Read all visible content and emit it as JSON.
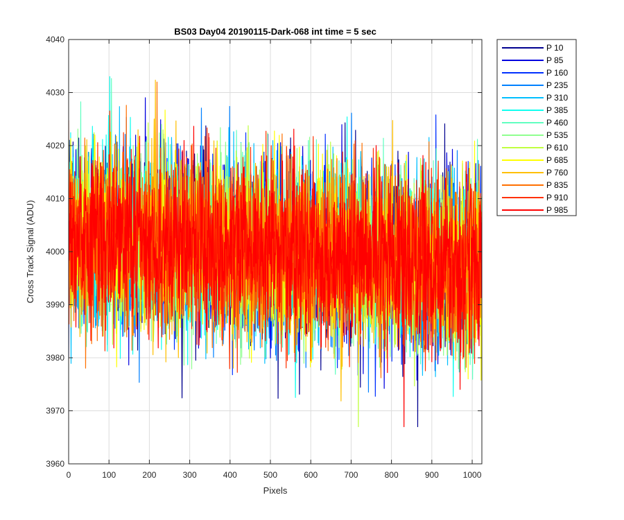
{
  "chart_data": {
    "type": "line",
    "title": "BS03 Day04 20190115-Dark-068 int time = 5 sec",
    "xlabel": "Pixels",
    "ylabel": "Cross Track Signal (ADU)",
    "xlim": [
      0,
      1024
    ],
    "ylim": [
      3960,
      4040
    ],
    "xticks": [
      0,
      100,
      200,
      300,
      400,
      500,
      600,
      700,
      800,
      900,
      1000
    ],
    "yticks": [
      3960,
      3970,
      3980,
      3990,
      4000,
      4010,
      4020,
      4030,
      4040
    ],
    "grid": true,
    "legend_position": "outside-top-right",
    "noise_model": {
      "points": 1024,
      "typical_std_adu": 8,
      "min_adu": 3967,
      "max_adu": 4040,
      "mean_trend_adu": [
        [
          0,
          4003
        ],
        [
          1024,
          3997
        ]
      ]
    },
    "series": [
      {
        "name": "P 10",
        "color": "#00008F"
      },
      {
        "name": "P 85",
        "color": "#0000DF"
      },
      {
        "name": "P 160",
        "color": "#0030FF"
      },
      {
        "name": "P 235",
        "color": "#0080FF"
      },
      {
        "name": "P 310",
        "color": "#00BFFF"
      },
      {
        "name": "P 385",
        "color": "#10FFEF"
      },
      {
        "name": "P 460",
        "color": "#60FFC0"
      },
      {
        "name": "P 535",
        "color": "#8FFF8F"
      },
      {
        "name": "P 610",
        "color": "#C0FF40"
      },
      {
        "name": "P 685",
        "color": "#FFFF00"
      },
      {
        "name": "P 760",
        "color": "#FFBF00"
      },
      {
        "name": "P 835",
        "color": "#FF7000"
      },
      {
        "name": "P 910",
        "color": "#FF3000"
      },
      {
        "name": "P 985",
        "color": "#FF0000"
      }
    ]
  }
}
